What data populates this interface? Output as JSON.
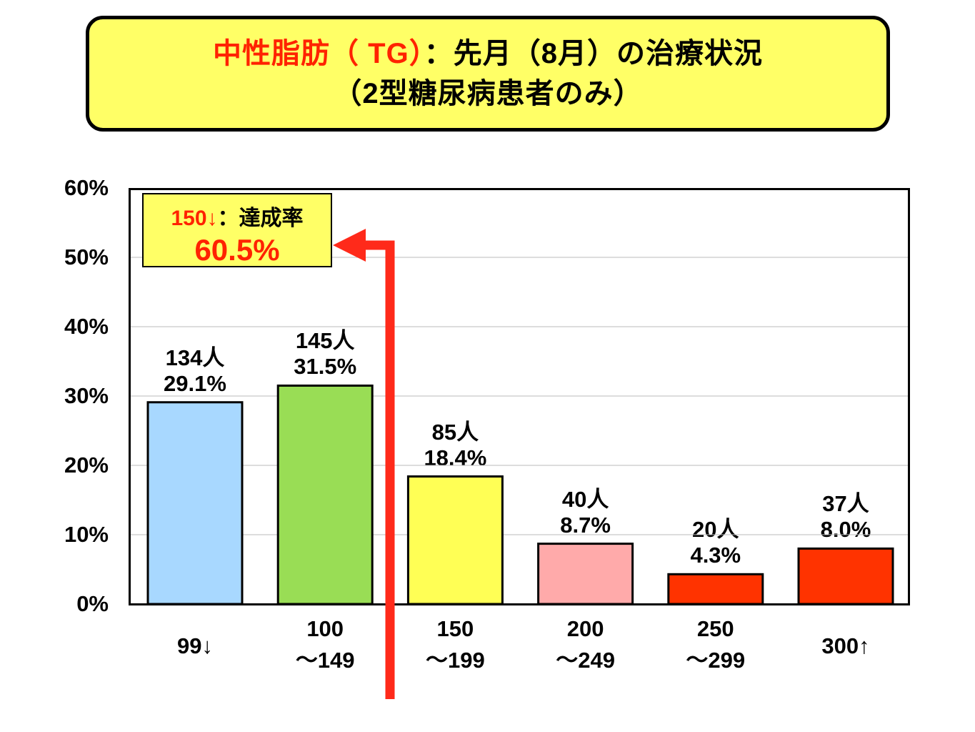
{
  "title": {
    "line1_red": "中性脂肪（ TG）",
    "line1_rest": "：先月（8月）の治療状況",
    "line2": "（2型糖尿病患者のみ）"
  },
  "callout": {
    "prefix": "150↓",
    "label": "：達成率",
    "value": "60.5%"
  },
  "colors": {
    "title_bg": "#ffff66",
    "accent_red": "#ff2200",
    "arrow": "#ff2a1a"
  },
  "chart_data": {
    "type": "bar",
    "categories": [
      "99↓",
      "100\n～149",
      "150\n～199",
      "200\n～249",
      "250\n～299",
      "300↑"
    ],
    "values": [
      29.1,
      31.5,
      18.4,
      8.7,
      4.3,
      8.0
    ],
    "counts": [
      "134人",
      "145人",
      "85人",
      "40人",
      "20人",
      "37人"
    ],
    "percent_labels": [
      "29.1%",
      "31.5%",
      "18.4%",
      "8.7%",
      "4.3%",
      "8.0%"
    ],
    "bar_colors": [
      "#a8d8ff",
      "#99dd55",
      "#ffff55",
      "#ffaaaa",
      "#ff3300",
      "#ff3300"
    ],
    "yticks": [
      "0%",
      "10%",
      "20%",
      "30%",
      "40%",
      "50%",
      "60%"
    ],
    "ylim": [
      0,
      60
    ],
    "grid": true
  }
}
